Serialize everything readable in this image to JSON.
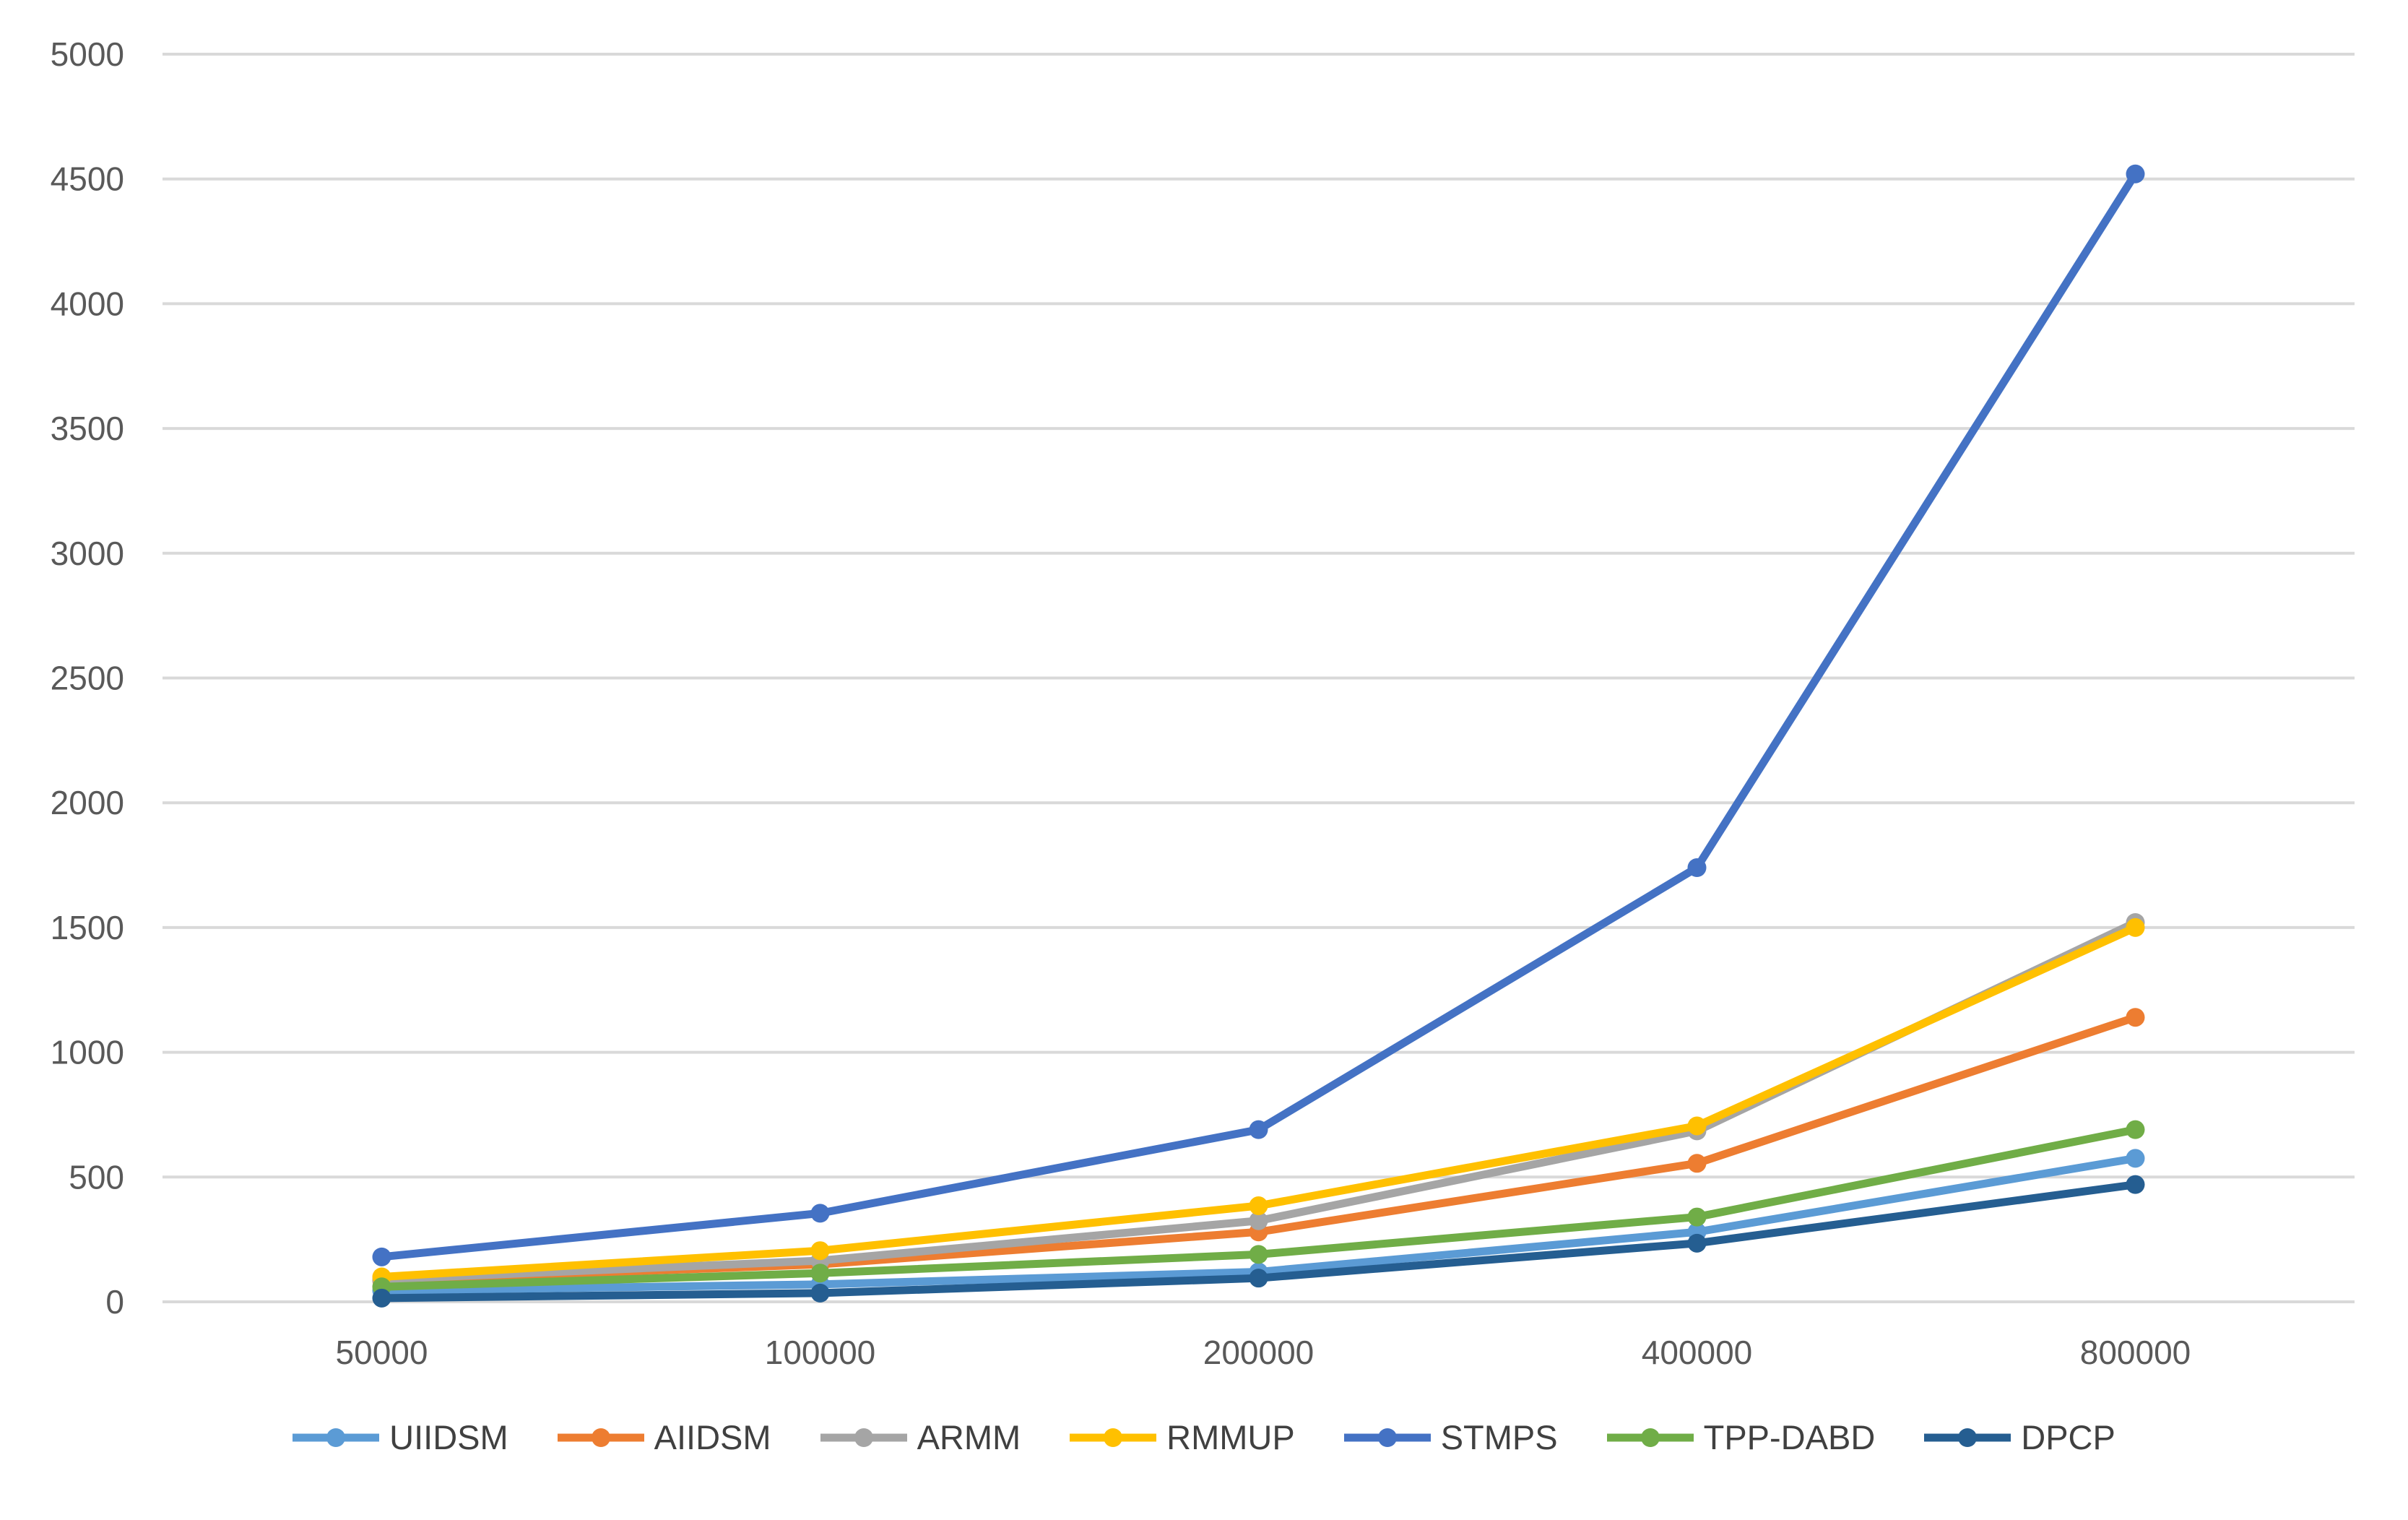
{
  "chart_data": {
    "type": "line",
    "title": "",
    "xlabel": "",
    "ylabel": "",
    "x_axis_type": "category",
    "categories": [
      "50000",
      "100000",
      "200000",
      "400000",
      "800000"
    ],
    "y_ticks": [
      "0",
      "500",
      "1000",
      "1500",
      "2000",
      "2500",
      "3000",
      "3500",
      "4000",
      "4500",
      "5000"
    ],
    "ylim": [
      0,
      5000
    ],
    "y_tick_step": 500,
    "grid": "horizontal",
    "legend_position": "bottom",
    "series": [
      {
        "name": "UIIDSM",
        "color": "#5B9BD5",
        "values": [
          45,
          70,
          120,
          280,
          575
        ]
      },
      {
        "name": "AIIDSM",
        "color": "#ED7D31",
        "values": [
          85,
          150,
          280,
          555,
          1140
        ]
      },
      {
        "name": "ARMM",
        "color": "#A5A5A5",
        "values": [
          90,
          165,
          325,
          685,
          1520
        ]
      },
      {
        "name": "RMMUP",
        "color": "#FFC000",
        "values": [
          100,
          205,
          385,
          705,
          1500
        ]
      },
      {
        "name": "STMPS",
        "color": "#4472C4",
        "values": [
          180,
          355,
          690,
          1740,
          4520
        ]
      },
      {
        "name": "TPP-DABD",
        "color": "#70AD47",
        "values": [
          60,
          115,
          190,
          340,
          690
        ]
      },
      {
        "name": "DPCP",
        "color": "#255E91",
        "values": [
          15,
          35,
          95,
          235,
          470
        ]
      }
    ],
    "style": {
      "gridline_color": "#D9D9D9",
      "tick_label_color": "#595959",
      "legend_label_color": "#404040",
      "background": "#FFFFFF"
    }
  }
}
